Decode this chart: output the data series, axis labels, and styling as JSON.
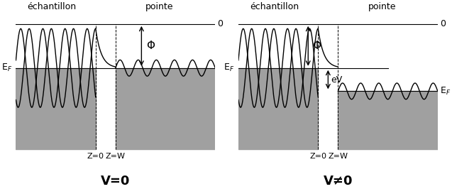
{
  "fig_width": 6.37,
  "fig_height": 2.66,
  "dpi": 100,
  "bg_color": "#ffffff",
  "gray_color": "#a0a0a0",
  "label_echantillon": "échantillon",
  "label_pointe": "pointe",
  "label_EF": "E$_F$",
  "label_0": "0",
  "label_Z0": "Z=0",
  "label_ZW": "Z=W",
  "label_Phi": "Φ",
  "label_eV": "eV",
  "label_V0": "V=0",
  "label_Vne0": "V≠0",
  "title_fontsize": 14,
  "annotation_fontsize": 10
}
